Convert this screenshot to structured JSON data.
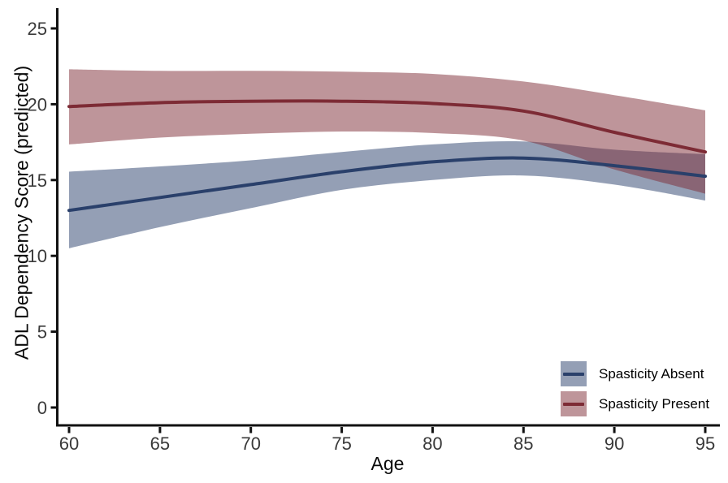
{
  "figure": {
    "background": "#ffffff"
  },
  "chart_data": {
    "type": "line",
    "title": "",
    "xlabel": "Age",
    "ylabel": "ADL Dependency Score (predicted)",
    "xlim": [
      60,
      95
    ],
    "ylim": [
      0,
      25
    ],
    "x_ticks": [
      60,
      65,
      70,
      75,
      80,
      85,
      90,
      95
    ],
    "y_ticks": [
      0,
      5,
      10,
      15,
      20,
      25
    ],
    "grid": false,
    "legend_position": "inside-bottom-right",
    "band_opacity": 0.5,
    "x": [
      60,
      65,
      70,
      75,
      80,
      85,
      90,
      95
    ],
    "series": [
      {
        "name": "Spasticity Absent",
        "color": "#2A406B",
        "values": [
          13.0,
          13.85,
          14.7,
          15.55,
          16.2,
          16.45,
          15.95,
          15.25
        ],
        "ci_upper": [
          15.55,
          15.9,
          16.3,
          16.85,
          17.35,
          17.55,
          17.0,
          16.7
        ],
        "ci_lower": [
          10.5,
          11.9,
          13.15,
          14.35,
          15.0,
          15.3,
          14.7,
          13.65
        ]
      },
      {
        "name": "Spasticity Present",
        "color": "#7D2B35",
        "values": [
          19.85,
          20.1,
          20.2,
          20.2,
          20.05,
          19.55,
          18.15,
          16.85
        ],
        "ci_upper": [
          22.3,
          22.2,
          22.2,
          22.15,
          22.0,
          21.5,
          20.6,
          19.6
        ],
        "ci_lower": [
          17.35,
          17.8,
          18.05,
          18.2,
          18.1,
          17.6,
          15.7,
          14.1
        ]
      }
    ]
  }
}
